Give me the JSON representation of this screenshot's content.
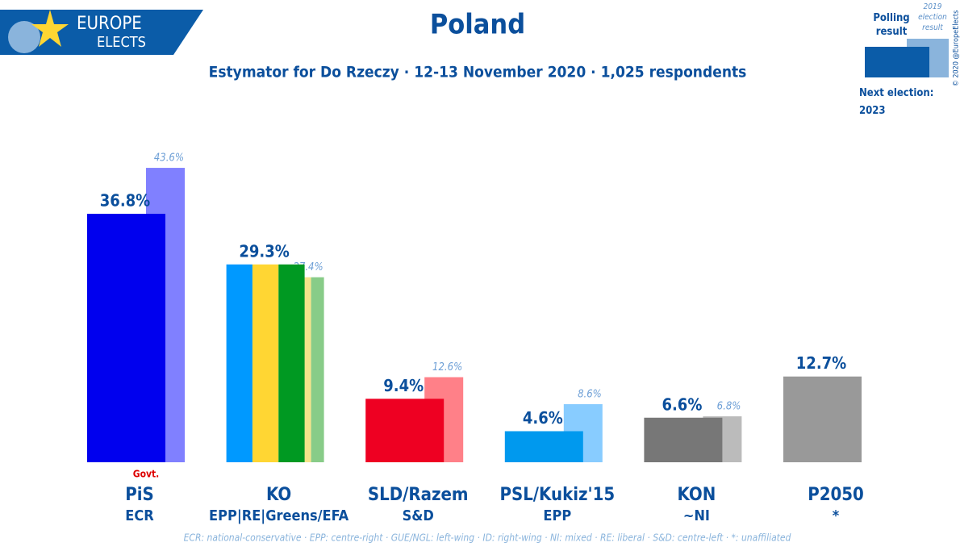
{
  "brand": {
    "line1": "EUROPE",
    "line2": "ELECTS"
  },
  "copyright": "© 2020 @EuropeElects",
  "chart_data": {
    "type": "bar",
    "title": "Poland",
    "subtitle": "Estymator for Do Rzeczy · 12-13 November 2020 · 1,025 respondents",
    "categories": [
      "PiS",
      "KO",
      "SLD/Razem",
      "PSL/Kukiz'15",
      "KON",
      "P2050"
    ],
    "groups": [
      "ECR",
      "EPP|RE|Greens/EFA",
      "S&D",
      "EPP",
      "~NI",
      "*"
    ],
    "annotation": {
      "category": 0,
      "text": "Govt.",
      "color": "#dd0000"
    },
    "series": [
      {
        "name": "Polling result",
        "values": [
          36.8,
          29.3,
          9.4,
          4.6,
          6.6,
          12.7
        ],
        "value_labels": [
          "36.8%",
          "29.3%",
          "9.4%",
          "4.6%",
          "6.6%",
          "12.7%"
        ],
        "colors": [
          [
            "#0000ee"
          ],
          [
            "#0099ff",
            "#ffd633",
            "#009922"
          ],
          [
            "#ee0022"
          ],
          [
            "#0099ee"
          ],
          [
            "#777777"
          ],
          [
            "#999999"
          ]
        ]
      },
      {
        "name": "2019 election result",
        "values": [
          43.6,
          27.4,
          12.6,
          8.6,
          6.8,
          null
        ],
        "value_labels": [
          "43.6%",
          "27.4%",
          "12.6%",
          "8.6%",
          "6.8%",
          null
        ],
        "colors": [
          [
            "#8080ff"
          ],
          [
            "#88ccff",
            "#f5e38a",
            "#88cc88"
          ],
          [
            "#ff8088"
          ],
          [
            "#88ccff"
          ],
          [
            "#bbbbbb"
          ],
          [
            "#cccccc"
          ]
        ]
      }
    ],
    "legend_note": "Next election: 2023",
    "footnote": "ECR: national-conservative · EPP: centre-right · GUE/NGL: left-wing · ID: right-wing · NI: mixed · RE: liberal · S&D: centre-left · *: unaffiliated"
  }
}
